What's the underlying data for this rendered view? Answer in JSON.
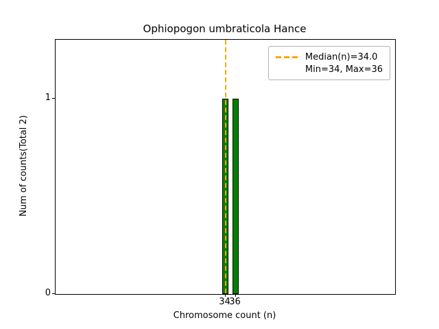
{
  "chart_data": {
    "type": "bar",
    "title": "Ophiopogon umbraticola Hance",
    "xlabel": "Chromosome count (n)",
    "ylabel": "Num of counts",
    "ylabel_total": "(Total 2)",
    "x": [
      34,
      36
    ],
    "values": [
      1,
      1
    ],
    "bar_width_units": 1.2,
    "xlim": [
      1,
      67
    ],
    "ylim": [
      0,
      1.3
    ],
    "xticks": [
      34,
      36
    ],
    "yticks": [
      0,
      1
    ],
    "median": 34.0,
    "min": 34,
    "max": 36,
    "legend_labels": [
      "Median(n)=34.0",
      "Min=34, Max=36"
    ],
    "legend_position": "upper right",
    "grid": false,
    "colors": {
      "bar_fill": "#008000",
      "bar_edge": "#000000",
      "median_line": "#ffa500",
      "axis": "#000000"
    }
  }
}
